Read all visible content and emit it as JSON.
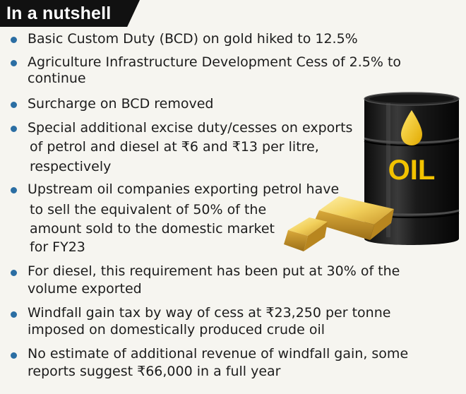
{
  "header": {
    "title": "In a nutshell"
  },
  "items": [
    {
      "lines": [
        "Basic Custom Duty (BCD) on gold hiked to 12.5%"
      ]
    },
    {
      "lines": [
        "Agriculture Infrastructure Development Cess of 2.5% to",
        "continue"
      ]
    },
    {
      "lines": [
        "Surcharge on BCD removed"
      ]
    },
    {
      "lines": [
        "Special additional excise duty/cesses on exports",
        "of petrol and diesel at ₹6 and ₹13 per litre,",
        "respectively"
      ]
    },
    {
      "lines": [
        "Upstream oil companies exporting petrol have",
        "to sell the equivalent of 50% of the",
        "amount sold to the domestic market",
        "for FY23"
      ]
    },
    {
      "lines": [
        "For diesel, this requirement has been put at 30% of the",
        "volume exported"
      ]
    },
    {
      "lines": [
        "Windfall gain tax by way of cess at ₹23,250 per tonne",
        "imposed on domestically produced crude oil"
      ]
    },
    {
      "lines": [
        "No estimate of additional revenue of windfall gain, some",
        "reports suggest ₹66,000 in a full year"
      ]
    }
  ],
  "illustration": {
    "barrel_label": "OIL",
    "icons": [
      "oil-barrel-icon",
      "oil-drop-icon",
      "gold-bars-icon"
    ],
    "colors": {
      "barrel": "#1a1a1a",
      "oil_label": "#f2c200",
      "gold": "#e0b33a",
      "bullet": "#2b6ea3"
    }
  }
}
